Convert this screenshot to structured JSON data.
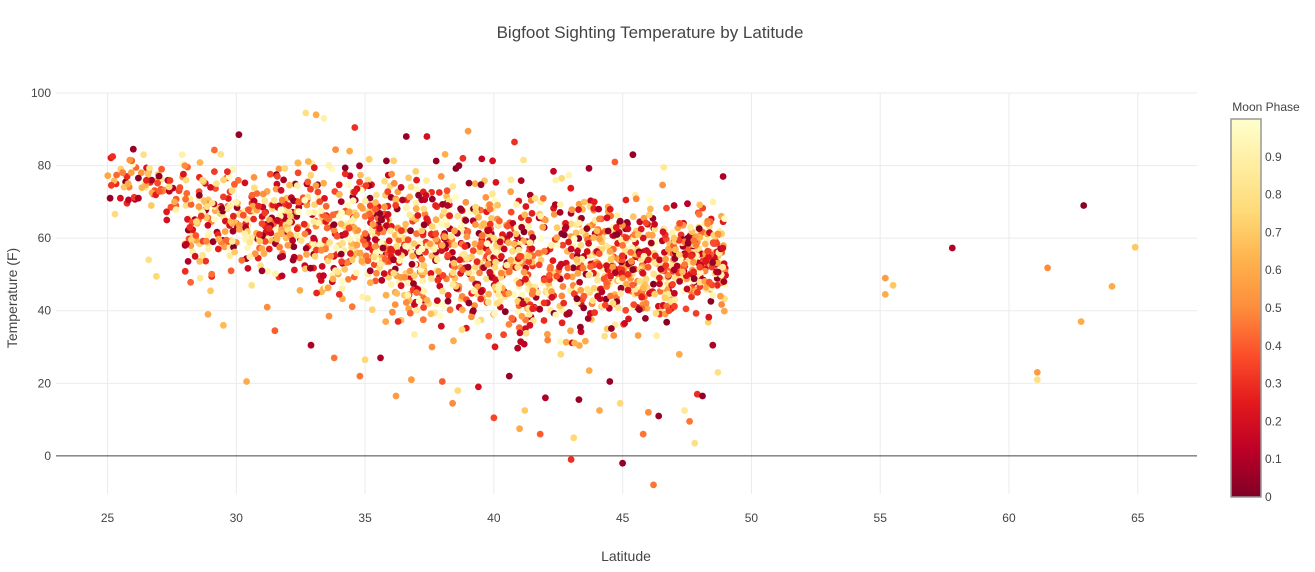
{
  "chart_data": {
    "type": "scatter",
    "title": "Bigfoot Sighting Temperature by Latitude",
    "xlabel": "Latitude",
    "ylabel": "Temperature (F)",
    "xlim": [
      23,
      67.3
    ],
    "ylim": [
      -10.5,
      100
    ],
    "x_ticks": [
      "25",
      "30",
      "35",
      "40",
      "45",
      "50",
      "55",
      "60",
      "65"
    ],
    "y_ticks": [
      "0",
      "20",
      "40",
      "60",
      "80",
      "100"
    ],
    "grid": true,
    "colorbar": {
      "title": "Moon Phase",
      "range": [
        0,
        1
      ],
      "ticks": [
        "0",
        "0.1",
        "0.2",
        "0.3",
        "0.4",
        "0.5",
        "0.6",
        "0.7",
        "0.8",
        "0.9"
      ],
      "colorscale": [
        "#800026",
        "#bd0026",
        "#e31a1c",
        "#fc4e2a",
        "#fd8d3c",
        "#feb24c",
        "#fed976",
        "#ffeda0",
        "#ffffcc"
      ]
    },
    "points": [
      {
        "x": 25.1,
        "y": 71,
        "c": 0.05
      },
      {
        "x": 25.2,
        "y": 82.5,
        "c": 0.3
      },
      {
        "x": 25.5,
        "y": 71,
        "c": 0.2
      },
      {
        "x": 25.8,
        "y": 75,
        "c": 0.6
      },
      {
        "x": 26.0,
        "y": 84.5,
        "c": 0.05
      },
      {
        "x": 26.2,
        "y": 71,
        "c": 0.1
      },
      {
        "x": 26.4,
        "y": 83,
        "c": 0.8
      },
      {
        "x": 26.6,
        "y": 54,
        "c": 0.8
      },
      {
        "x": 26.7,
        "y": 69,
        "c": 0.7
      },
      {
        "x": 26.9,
        "y": 49.5,
        "c": 0.75
      },
      {
        "x": 27.1,
        "y": 79,
        "c": 0.4
      },
      {
        "x": 27.3,
        "y": 65,
        "c": 0.2
      },
      {
        "x": 27.6,
        "y": 70,
        "c": 0.6
      },
      {
        "x": 27.9,
        "y": 83,
        "c": 0.9
      },
      {
        "x": 28.2,
        "y": 63,
        "c": 0.3
      },
      {
        "x": 28.4,
        "y": 55,
        "c": 0.2
      },
      {
        "x": 28.6,
        "y": 49,
        "c": 0.85
      },
      {
        "x": 28.9,
        "y": 39,
        "c": 0.6
      },
      {
        "x": 29.0,
        "y": 45.5,
        "c": 0.7
      },
      {
        "x": 29.3,
        "y": 57,
        "c": 0.25
      },
      {
        "x": 29.5,
        "y": 36,
        "c": 0.65
      },
      {
        "x": 29.8,
        "y": 51,
        "c": 0.4
      },
      {
        "x": 30.1,
        "y": 88.5,
        "c": 0.05
      },
      {
        "x": 30.4,
        "y": 20.5,
        "c": 0.6
      },
      {
        "x": 30.6,
        "y": 47,
        "c": 0.8
      },
      {
        "x": 30.9,
        "y": 61,
        "c": 0.3
      },
      {
        "x": 31.2,
        "y": 41,
        "c": 0.5
      },
      {
        "x": 31.5,
        "y": 34.5,
        "c": 0.4
      },
      {
        "x": 31.8,
        "y": 55,
        "c": 0.1
      },
      {
        "x": 32.1,
        "y": 66,
        "c": 0.7
      },
      {
        "x": 32.4,
        "y": 78,
        "c": 0.35
      },
      {
        "x": 32.7,
        "y": 94.5,
        "c": 0.8
      },
      {
        "x": 32.9,
        "y": 30.5,
        "c": 0.1
      },
      {
        "x": 33.1,
        "y": 94,
        "c": 0.6
      },
      {
        "x": 33.4,
        "y": 93,
        "c": 0.9
      },
      {
        "x": 33.6,
        "y": 38.5,
        "c": 0.5
      },
      {
        "x": 33.8,
        "y": 27,
        "c": 0.45
      },
      {
        "x": 34.0,
        "y": 44.5,
        "c": 0.3
      },
      {
        "x": 34.2,
        "y": 61,
        "c": 0.2
      },
      {
        "x": 34.4,
        "y": 84,
        "c": 0.6
      },
      {
        "x": 34.6,
        "y": 90.5,
        "c": 0.3
      },
      {
        "x": 34.8,
        "y": 22,
        "c": 0.45
      },
      {
        "x": 35.0,
        "y": 26.5,
        "c": 0.75
      },
      {
        "x": 35.2,
        "y": 51,
        "c": 0.05
      },
      {
        "x": 35.4,
        "y": 68,
        "c": 0.4
      },
      {
        "x": 35.6,
        "y": 27,
        "c": 0.1
      },
      {
        "x": 35.8,
        "y": 37,
        "c": 0.6
      },
      {
        "x": 36.0,
        "y": 57,
        "c": 0.25
      },
      {
        "x": 36.2,
        "y": 16.5,
        "c": 0.55
      },
      {
        "x": 36.4,
        "y": 74,
        "c": 0.15
      },
      {
        "x": 36.6,
        "y": 88,
        "c": 0.05
      },
      {
        "x": 36.8,
        "y": 21,
        "c": 0.55
      },
      {
        "x": 37.0,
        "y": 45,
        "c": 0.45
      },
      {
        "x": 37.2,
        "y": 62,
        "c": 0.7
      },
      {
        "x": 37.4,
        "y": 88,
        "c": 0.2
      },
      {
        "x": 37.6,
        "y": 30,
        "c": 0.5
      },
      {
        "x": 37.8,
        "y": 54,
        "c": 0.85
      },
      {
        "x": 38.0,
        "y": 20.5,
        "c": 0.4
      },
      {
        "x": 38.2,
        "y": 69,
        "c": 0.1
      },
      {
        "x": 38.4,
        "y": 14.5,
        "c": 0.5
      },
      {
        "x": 38.6,
        "y": 18,
        "c": 0.75
      },
      {
        "x": 38.8,
        "y": 82,
        "c": 0.3
      },
      {
        "x": 39.0,
        "y": 89.5,
        "c": 0.55
      },
      {
        "x": 39.2,
        "y": 40,
        "c": 0.05
      },
      {
        "x": 39.4,
        "y": 19,
        "c": 0.2
      },
      {
        "x": 39.6,
        "y": 64,
        "c": 0.65
      },
      {
        "x": 39.8,
        "y": 33,
        "c": 0.4
      },
      {
        "x": 40.0,
        "y": 10.5,
        "c": 0.35
      },
      {
        "x": 40.2,
        "y": 47,
        "c": 0.9
      },
      {
        "x": 40.4,
        "y": 57,
        "c": 0.15
      },
      {
        "x": 40.6,
        "y": 22,
        "c": 0.05
      },
      {
        "x": 40.8,
        "y": 86.5,
        "c": 0.3
      },
      {
        "x": 41.0,
        "y": 7.5,
        "c": 0.6
      },
      {
        "x": 41.2,
        "y": 12.5,
        "c": 0.7
      },
      {
        "x": 41.4,
        "y": 36,
        "c": 0.2
      },
      {
        "x": 41.6,
        "y": 71,
        "c": 0.8
      },
      {
        "x": 41.8,
        "y": 6,
        "c": 0.4
      },
      {
        "x": 42.0,
        "y": 16,
        "c": 0.1
      },
      {
        "x": 42.2,
        "y": 52,
        "c": 0.45
      },
      {
        "x": 42.4,
        "y": 76,
        "c": 0.9
      },
      {
        "x": 42.6,
        "y": 28,
        "c": 0.75
      },
      {
        "x": 42.8,
        "y": 63,
        "c": 0.1
      },
      {
        "x": 43.0,
        "y": -1,
        "c": 0.3
      },
      {
        "x": 43.1,
        "y": 5,
        "c": 0.75
      },
      {
        "x": 43.3,
        "y": 15.5,
        "c": 0.05
      },
      {
        "x": 43.5,
        "y": 44,
        "c": 0.4
      },
      {
        "x": 43.7,
        "y": 23.5,
        "c": 0.6
      },
      {
        "x": 43.9,
        "y": 70,
        "c": 0.25
      },
      {
        "x": 44.1,
        "y": 12.5,
        "c": 0.6
      },
      {
        "x": 44.3,
        "y": 33,
        "c": 0.8
      },
      {
        "x": 44.5,
        "y": 20.5,
        "c": 0.05
      },
      {
        "x": 44.7,
        "y": 81,
        "c": 0.4
      },
      {
        "x": 44.9,
        "y": 14.5,
        "c": 0.75
      },
      {
        "x": 45.0,
        "y": -2,
        "c": 0.05
      },
      {
        "x": 45.2,
        "y": 50,
        "c": 0.3
      },
      {
        "x": 45.4,
        "y": 83,
        "c": 0.05
      },
      {
        "x": 45.6,
        "y": 61,
        "c": 0.7
      },
      {
        "x": 45.8,
        "y": 6,
        "c": 0.45
      },
      {
        "x": 46.0,
        "y": 12,
        "c": 0.5
      },
      {
        "x": 46.2,
        "y": -8,
        "c": 0.45
      },
      {
        "x": 46.4,
        "y": 11,
        "c": 0.05
      },
      {
        "x": 46.6,
        "y": 79.5,
        "c": 0.85
      },
      {
        "x": 46.8,
        "y": 40,
        "c": 0.35
      },
      {
        "x": 47.0,
        "y": 69,
        "c": 0.1
      },
      {
        "x": 47.2,
        "y": 28,
        "c": 0.6
      },
      {
        "x": 47.4,
        "y": 12.5,
        "c": 0.85
      },
      {
        "x": 47.6,
        "y": 9.5,
        "c": 0.45
      },
      {
        "x": 47.8,
        "y": 3.5,
        "c": 0.8
      },
      {
        "x": 47.9,
        "y": 17,
        "c": 0.3
      },
      {
        "x": 48.1,
        "y": 16.5,
        "c": 0.05
      },
      {
        "x": 48.3,
        "y": 64,
        "c": 0.5
      },
      {
        "x": 48.5,
        "y": 30.5,
        "c": 0.1
      },
      {
        "x": 48.7,
        "y": 23,
        "c": 0.8
      },
      {
        "x": 48.9,
        "y": 77,
        "c": 0.1
      },
      {
        "x": 28.0,
        "y": 80,
        "c": 0.5
      },
      {
        "x": 29.0,
        "y": 74,
        "c": 0.2
      },
      {
        "x": 30.0,
        "y": 70,
        "c": 0.9
      },
      {
        "x": 31.0,
        "y": 64,
        "c": 0.35
      },
      {
        "x": 32.0,
        "y": 58,
        "c": 0.55
      },
      {
        "x": 33.0,
        "y": 60,
        "c": 0.15
      },
      {
        "x": 34.0,
        "y": 72,
        "c": 0.65
      },
      {
        "x": 35.0,
        "y": 66,
        "c": 0.45
      },
      {
        "x": 36.0,
        "y": 62,
        "c": 0.85
      },
      {
        "x": 37.0,
        "y": 76,
        "c": 0.25
      },
      {
        "x": 38.0,
        "y": 58,
        "c": 0.6
      },
      {
        "x": 39.0,
        "y": 52,
        "c": 0.05
      },
      {
        "x": 40.0,
        "y": 60,
        "c": 0.75
      },
      {
        "x": 41.0,
        "y": 55,
        "c": 0.35
      },
      {
        "x": 42.0,
        "y": 65,
        "c": 0.55
      },
      {
        "x": 43.0,
        "y": 57,
        "c": 0.15
      },
      {
        "x": 44.0,
        "y": 62,
        "c": 0.65
      },
      {
        "x": 45.0,
        "y": 58,
        "c": 0.45
      },
      {
        "x": 46.0,
        "y": 54,
        "c": 0.25
      },
      {
        "x": 47.0,
        "y": 60,
        "c": 0.7
      },
      {
        "x": 48.0,
        "y": 52,
        "c": 0.35
      },
      {
        "x": 48.8,
        "y": 44,
        "c": 0.55
      },
      {
        "x": 48.5,
        "y": 70,
        "c": 0.9
      },
      {
        "x": 47.5,
        "y": 46,
        "c": 0.15
      },
      {
        "x": 55.2,
        "y": 49,
        "c": 0.55
      },
      {
        "x": 55.2,
        "y": 44.5,
        "c": 0.6
      },
      {
        "x": 55.5,
        "y": 47,
        "c": 0.7
      },
      {
        "x": 57.8,
        "y": 57.3,
        "c": 0.1
      },
      {
        "x": 61.1,
        "y": 23,
        "c": 0.55
      },
      {
        "x": 61.1,
        "y": 21,
        "c": 0.8
      },
      {
        "x": 61.5,
        "y": 51.8,
        "c": 0.5
      },
      {
        "x": 62.8,
        "y": 37,
        "c": 0.6
      },
      {
        "x": 62.9,
        "y": 69,
        "c": 0.02
      },
      {
        "x": 64.0,
        "y": 46.7,
        "c": 0.6
      },
      {
        "x": 64.9,
        "y": 57.5,
        "c": 0.7
      }
    ],
    "clusters": [
      {
        "x0": 25,
        "x1": 28,
        "y0": 64,
        "y1": 85,
        "n": 70
      },
      {
        "x0": 28,
        "x1": 32,
        "y0": 44,
        "y1": 87,
        "n": 250
      },
      {
        "x0": 32,
        "x1": 36,
        "y0": 36,
        "y1": 88,
        "n": 330
      },
      {
        "x0": 36,
        "x1": 40,
        "y0": 27,
        "y1": 87,
        "n": 380
      },
      {
        "x0": 40,
        "x1": 44,
        "y0": 22,
        "y1": 84,
        "n": 360
      },
      {
        "x0": 44,
        "x1": 47,
        "y0": 28,
        "y1": 76,
        "n": 320
      },
      {
        "x0": 47,
        "x1": 49,
        "y0": 34,
        "y1": 74,
        "n": 220
      }
    ]
  }
}
